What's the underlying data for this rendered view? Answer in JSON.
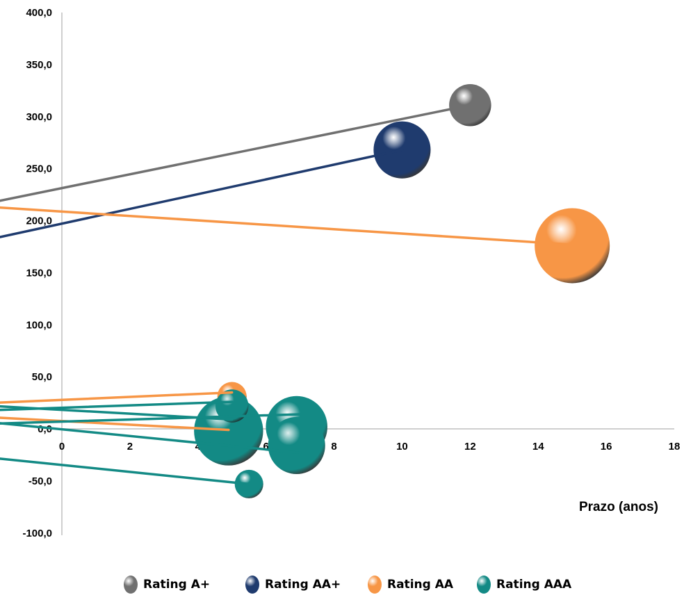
{
  "chart_data": {
    "type": "bubble",
    "xlabel": "Prazo (anos)",
    "ylabel": "",
    "xlim": [
      0,
      18
    ],
    "ylim": [
      -100,
      400
    ],
    "x_ticks": [
      "0",
      "2",
      "4",
      "6",
      "8",
      "10",
      "12",
      "14",
      "16",
      "18"
    ],
    "y_ticks": [
      "400,0",
      "350,0",
      "300,0",
      "250,0",
      "200,0",
      "150,0",
      "100,0",
      "50,0",
      "0,0",
      "-50,0",
      "-100,0"
    ],
    "series": [
      {
        "name": "Rating A+",
        "color": "#707070",
        "points": [
          {
            "x": 12.0,
            "y": 311,
            "size": 0.56
          }
        ],
        "trend": {
          "x0": -2,
          "y0": 218,
          "x1": 12.0,
          "y1": 311
        }
      },
      {
        "name": "Rating AA+",
        "color": "#1f3b6e",
        "points": [
          {
            "x": 10.0,
            "y": 268,
            "size": 0.76
          }
        ],
        "trend": {
          "x0": -2,
          "y0": 183,
          "x1": 10.0,
          "y1": 268
        }
      },
      {
        "name": "Rating AA",
        "color": "#f79646",
        "points": [
          {
            "x": 15.0,
            "y": 176,
            "size": 1.0
          },
          {
            "x": 5.0,
            "y": 31,
            "size": 0.39
          }
        ],
        "trend": [
          {
            "x0": -2,
            "y0": 213,
            "x1": 15.0,
            "y1": 177
          },
          {
            "x0": -2,
            "y0": 25,
            "x1": 5.0,
            "y1": 35
          },
          {
            "x0": -2,
            "y0": 11,
            "x1": 4.9,
            "y1": -1
          }
        ]
      },
      {
        "name": "Rating AAA",
        "color": "#138a85",
        "points": [
          {
            "x": 4.9,
            "y": -2,
            "size": 0.92
          },
          {
            "x": 6.9,
            "y": 2,
            "size": 0.82
          },
          {
            "x": 6.9,
            "y": -16,
            "size": 0.76
          },
          {
            "x": 5.0,
            "y": 22,
            "size": 0.44
          },
          {
            "x": 5.5,
            "y": -53,
            "size": 0.38
          }
        ],
        "trend": [
          {
            "x0": -2,
            "y0": 18,
            "x1": 5.0,
            "y1": 26
          },
          {
            "x0": -2,
            "y0": 22,
            "x1": 5.0,
            "y1": 9
          },
          {
            "x0": -2,
            "y0": 5,
            "x1": 7.0,
            "y1": 14
          },
          {
            "x0": -2,
            "y0": 6,
            "x1": 7.0,
            "y1": -23
          },
          {
            "x0": -2,
            "y0": -28,
            "x1": 5.5,
            "y1": -53
          }
        ]
      }
    ],
    "legend_position": "bottom"
  },
  "legend": [
    {
      "label": "Rating A+",
      "color": "#707070"
    },
    {
      "label": "Rating AA+",
      "color": "#1f3b6e"
    },
    {
      "label": "Rating AA",
      "color": "#f79646"
    },
    {
      "label": "Rating AAA",
      "color": "#138a85"
    }
  ]
}
